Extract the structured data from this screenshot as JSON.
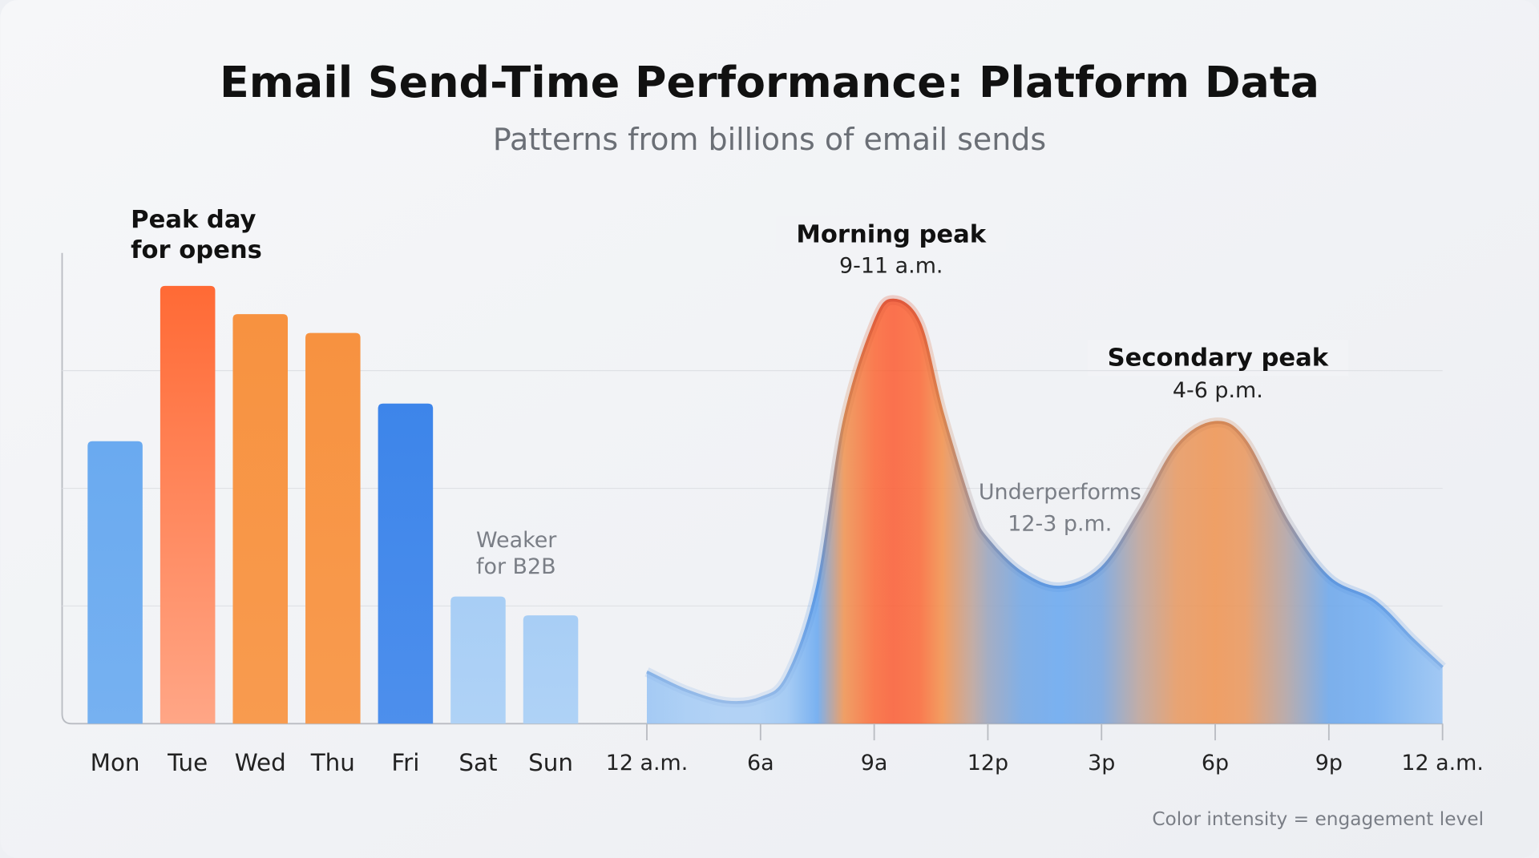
{
  "chart_data": [
    {
      "type": "bar",
      "title": "Email Send-Time Performance: Platform Data",
      "subtitle": "Patterns from billions of email sends",
      "categories": [
        "Mon",
        "Tue",
        "Wed",
        "Thu",
        "Fri",
        "Sat",
        "Sun"
      ],
      "values": [
        60,
        93,
        87,
        83,
        68,
        27,
        23
      ],
      "colors": [
        "#6aaaf0",
        "#ff6a35",
        "#f79240",
        "#f79240",
        "#3d85ea",
        "#a8cef5",
        "#a8cef5"
      ],
      "ylim": [
        0,
        100
      ],
      "yticks": [
        25,
        50,
        75
      ],
      "grid": true,
      "annotations": [
        {
          "lines": [
            "Peak day",
            "for opens"
          ],
          "style": "bold"
        },
        {
          "lines": [
            "Weaker",
            "for B2B"
          ],
          "style": "muted"
        }
      ]
    },
    {
      "type": "area",
      "x": [
        0,
        2.1,
        4.2,
        6,
        6.7,
        7.5,
        8.2,
        9,
        9.5,
        10.2,
        10.8,
        11.6,
        12,
        12.9,
        13.9,
        15,
        16,
        17,
        18,
        18.8,
        19.9,
        21,
        22.2,
        23.2,
        24
      ],
      "values": [
        11,
        7,
        4.6,
        5.4,
        10,
        29,
        64,
        85,
        90,
        85,
        66,
        45,
        39,
        32,
        29,
        33,
        45,
        59,
        64,
        60,
        43,
        31,
        26,
        18,
        12
      ],
      "xticks": [
        {
          "value": 0,
          "label": "12 a.m."
        },
        {
          "value": 6,
          "label": "6a"
        },
        {
          "value": 9,
          "label": "9a"
        },
        {
          "value": 12,
          "label": "12p"
        },
        {
          "value": 15,
          "label": "3p"
        },
        {
          "value": 18,
          "label": "6p"
        },
        {
          "value": 21,
          "label": "9p"
        },
        {
          "value": 24,
          "label": "12 a.m."
        }
      ],
      "ylim": [
        0,
        100
      ],
      "yticks": [
        25,
        50,
        75
      ],
      "grid": true,
      "annotations": [
        {
          "lines": [
            "Morning peak",
            "9-11 a.m."
          ],
          "style": "peak"
        },
        {
          "lines": [
            "Underperforms",
            "12-3 p.m."
          ],
          "style": "muted"
        },
        {
          "lines": [
            "Secondary peak",
            "4-6 p.m."
          ],
          "style": "peak"
        }
      ],
      "note": "Color intensity = engagement level"
    }
  ]
}
